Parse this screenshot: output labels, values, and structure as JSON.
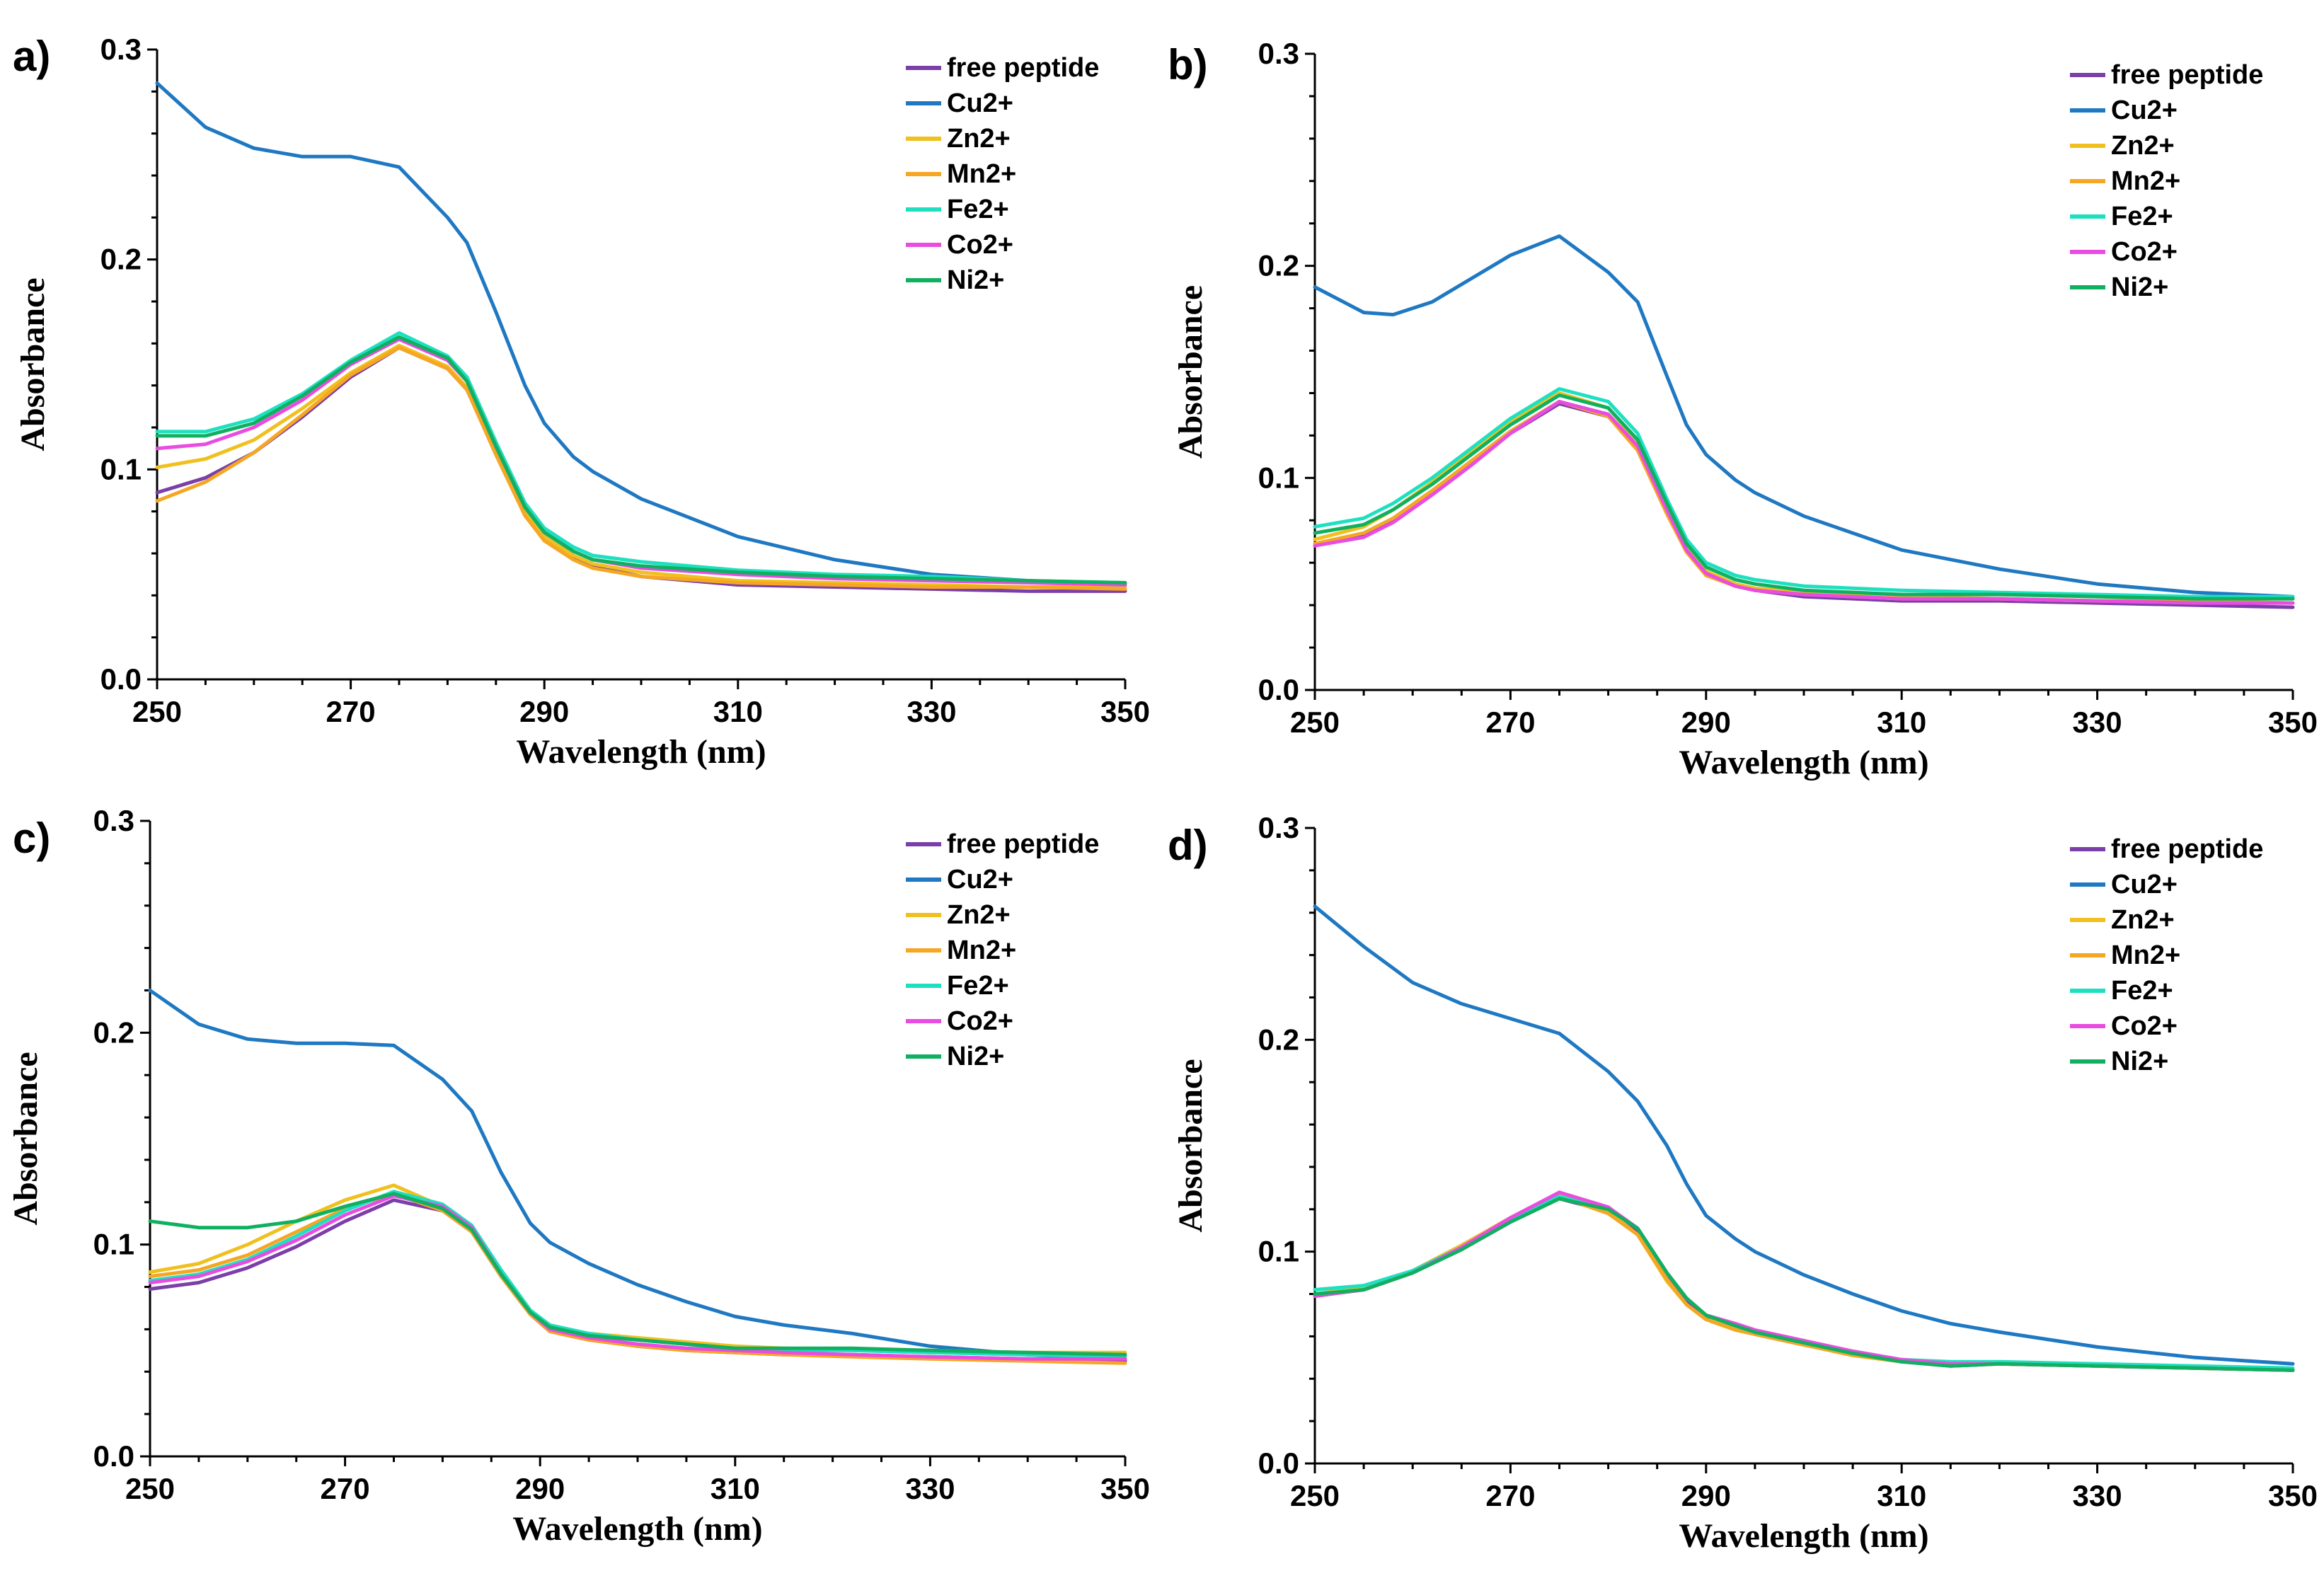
{
  "figure": {
    "panels": [
      "a)",
      "b)",
      "c)",
      "d)"
    ]
  },
  "colors": {
    "free peptide": "#7A3FA8",
    "Cu2+": "#1E78C2",
    "Zn2+": "#F0C020",
    "Mn2+": "#F5A623",
    "Fe2+": "#1EE0C0",
    "Co2+": "#E84CE0",
    "Ni2+": "#10B060"
  },
  "chart_data": [
    {
      "panel": "a)",
      "type": "line",
      "xlabel": "Wavelength (nm)",
      "ylabel": "Absorbance",
      "xlim": [
        250,
        350
      ],
      "ylim": [
        0,
        0.3
      ],
      "xticks": [
        "250",
        "270",
        "290",
        "310",
        "330",
        "350"
      ],
      "yticks": [
        "0.0",
        "0.1",
        "0.2",
        "0.3"
      ],
      "legend": [
        "free peptide",
        "Cu2+",
        "Zn2+",
        "Mn2+",
        "Fe2+",
        "Co2+",
        "Ni2+"
      ],
      "x": [
        250,
        255,
        260,
        265,
        270,
        275,
        280,
        282,
        285,
        288,
        290,
        293,
        295,
        300,
        310,
        320,
        330,
        340,
        350
      ],
      "series": [
        {
          "name": "free peptide",
          "values": [
            0.089,
            0.096,
            0.108,
            0.125,
            0.144,
            0.158,
            0.148,
            0.138,
            0.108,
            0.08,
            0.068,
            0.058,
            0.054,
            0.049,
            0.045,
            0.044,
            0.043,
            0.042,
            0.042
          ]
        },
        {
          "name": "Cu2+",
          "values": [
            0.284,
            0.263,
            0.253,
            0.249,
            0.249,
            0.244,
            0.22,
            0.208,
            0.175,
            0.14,
            0.122,
            0.106,
            0.099,
            0.086,
            0.068,
            0.057,
            0.05,
            0.047,
            0.045
          ]
        },
        {
          "name": "Zn2+",
          "values": [
            0.101,
            0.105,
            0.114,
            0.129,
            0.146,
            0.159,
            0.149,
            0.139,
            0.109,
            0.08,
            0.068,
            0.059,
            0.055,
            0.051,
            0.047,
            0.046,
            0.045,
            0.044,
            0.044
          ]
        },
        {
          "name": "Mn2+",
          "values": [
            0.085,
            0.094,
            0.108,
            0.126,
            0.145,
            0.158,
            0.148,
            0.138,
            0.107,
            0.078,
            0.066,
            0.057,
            0.053,
            0.049,
            0.046,
            0.045,
            0.044,
            0.044,
            0.043
          ]
        },
        {
          "name": "Fe2+",
          "values": [
            0.118,
            0.118,
            0.124,
            0.136,
            0.152,
            0.165,
            0.154,
            0.144,
            0.113,
            0.084,
            0.072,
            0.063,
            0.059,
            0.056,
            0.052,
            0.05,
            0.049,
            0.047,
            0.046
          ]
        },
        {
          "name": "Co2+",
          "values": [
            0.11,
            0.112,
            0.12,
            0.133,
            0.15,
            0.162,
            0.152,
            0.142,
            0.111,
            0.082,
            0.07,
            0.061,
            0.057,
            0.053,
            0.05,
            0.048,
            0.047,
            0.046,
            0.045
          ]
        },
        {
          "name": "Ni2+",
          "values": [
            0.116,
            0.116,
            0.122,
            0.135,
            0.151,
            0.163,
            0.153,
            0.142,
            0.111,
            0.082,
            0.07,
            0.061,
            0.057,
            0.054,
            0.051,
            0.049,
            0.048,
            0.047,
            0.046
          ]
        }
      ]
    },
    {
      "panel": "b)",
      "type": "line",
      "xlabel": "Wavelength (nm)",
      "ylabel": "Absorbance",
      "xlim": [
        250,
        350
      ],
      "ylim": [
        0,
        0.3
      ],
      "xticks": [
        "250",
        "270",
        "290",
        "310",
        "330",
        "350"
      ],
      "yticks": [
        "0.0",
        "0.1",
        "0.2",
        "0.3"
      ],
      "legend": [
        "free peptide",
        "Cu2+",
        "Zn2+",
        "Mn2+",
        "Fe2+",
        "Co2+",
        "Ni2+"
      ],
      "x": [
        250,
        255,
        258,
        262,
        266,
        270,
        275,
        280,
        283,
        286,
        288,
        290,
        293,
        295,
        300,
        310,
        320,
        330,
        340,
        350
      ],
      "series": [
        {
          "name": "free peptide",
          "values": [
            0.068,
            0.073,
            0.08,
            0.093,
            0.107,
            0.121,
            0.135,
            0.129,
            0.114,
            0.085,
            0.066,
            0.055,
            0.049,
            0.047,
            0.044,
            0.042,
            0.042,
            0.041,
            0.04,
            0.039
          ]
        },
        {
          "name": "Cu2+",
          "values": [
            0.19,
            0.178,
            0.177,
            0.183,
            0.194,
            0.205,
            0.214,
            0.197,
            0.183,
            0.148,
            0.125,
            0.111,
            0.099,
            0.093,
            0.082,
            0.066,
            0.057,
            0.05,
            0.046,
            0.044
          ]
        },
        {
          "name": "Zn2+",
          "values": [
            0.071,
            0.077,
            0.085,
            0.098,
            0.112,
            0.127,
            0.14,
            0.133,
            0.117,
            0.086,
            0.067,
            0.056,
            0.05,
            0.048,
            0.046,
            0.044,
            0.043,
            0.042,
            0.042,
            0.041
          ]
        },
        {
          "name": "Mn2+",
          "values": [
            0.069,
            0.074,
            0.081,
            0.094,
            0.108,
            0.122,
            0.136,
            0.129,
            0.113,
            0.083,
            0.065,
            0.054,
            0.049,
            0.047,
            0.045,
            0.043,
            0.043,
            0.042,
            0.042,
            0.041
          ]
        },
        {
          "name": "Fe2+",
          "values": [
            0.077,
            0.081,
            0.088,
            0.1,
            0.114,
            0.128,
            0.142,
            0.136,
            0.121,
            0.09,
            0.071,
            0.06,
            0.054,
            0.052,
            0.049,
            0.047,
            0.046,
            0.045,
            0.044,
            0.044
          ]
        },
        {
          "name": "Co2+",
          "values": [
            0.068,
            0.072,
            0.079,
            0.092,
            0.106,
            0.121,
            0.136,
            0.13,
            0.115,
            0.085,
            0.066,
            0.055,
            0.049,
            0.047,
            0.045,
            0.043,
            0.043,
            0.042,
            0.041,
            0.041
          ]
        },
        {
          "name": "Ni2+",
          "values": [
            0.074,
            0.078,
            0.085,
            0.097,
            0.111,
            0.125,
            0.139,
            0.133,
            0.118,
            0.088,
            0.069,
            0.058,
            0.052,
            0.05,
            0.047,
            0.045,
            0.045,
            0.044,
            0.043,
            0.043
          ]
        }
      ]
    },
    {
      "panel": "c)",
      "type": "line",
      "xlabel": "Wavelength (nm)",
      "ylabel": "Absorbance",
      "xlim": [
        250,
        350
      ],
      "ylim": [
        0,
        0.3
      ],
      "xticks": [
        "250",
        "270",
        "290",
        "310",
        "330",
        "350"
      ],
      "yticks": [
        "0.0",
        "0.1",
        "0.2",
        "0.3"
      ],
      "legend": [
        "free peptide",
        "Cu2+",
        "Zn2+",
        "Mn2+",
        "Fe2+",
        "Co2+",
        "Ni2+"
      ],
      "x": [
        250,
        255,
        260,
        265,
        270,
        275,
        280,
        283,
        286,
        289,
        291,
        295,
        300,
        305,
        310,
        315,
        322,
        330,
        340,
        350
      ],
      "series": [
        {
          "name": "free peptide",
          "values": [
            0.079,
            0.082,
            0.089,
            0.099,
            0.111,
            0.121,
            0.116,
            0.106,
            0.085,
            0.067,
            0.059,
            0.055,
            0.052,
            0.05,
            0.049,
            0.048,
            0.048,
            0.047,
            0.046,
            0.045
          ]
        },
        {
          "name": "Cu2+",
          "values": [
            0.22,
            0.204,
            0.197,
            0.195,
            0.195,
            0.194,
            0.178,
            0.163,
            0.134,
            0.11,
            0.101,
            0.091,
            0.081,
            0.073,
            0.066,
            0.062,
            0.058,
            0.052,
            0.048,
            0.046
          ]
        },
        {
          "name": "Zn2+",
          "values": [
            0.087,
            0.091,
            0.1,
            0.111,
            0.121,
            0.128,
            0.118,
            0.107,
            0.086,
            0.068,
            0.061,
            0.058,
            0.056,
            0.054,
            0.052,
            0.051,
            0.05,
            0.05,
            0.049,
            0.049
          ]
        },
        {
          "name": "Mn2+",
          "values": [
            0.085,
            0.088,
            0.095,
            0.106,
            0.117,
            0.124,
            0.116,
            0.106,
            0.085,
            0.067,
            0.059,
            0.055,
            0.052,
            0.05,
            0.049,
            0.048,
            0.047,
            0.046,
            0.045,
            0.044
          ]
        },
        {
          "name": "Fe2+",
          "values": [
            0.083,
            0.086,
            0.093,
            0.104,
            0.116,
            0.125,
            0.119,
            0.109,
            0.088,
            0.069,
            0.062,
            0.058,
            0.055,
            0.053,
            0.051,
            0.05,
            0.05,
            0.049,
            0.048,
            0.047
          ]
        },
        {
          "name": "Co2+",
          "values": [
            0.082,
            0.085,
            0.092,
            0.102,
            0.114,
            0.123,
            0.118,
            0.108,
            0.086,
            0.068,
            0.06,
            0.056,
            0.053,
            0.051,
            0.05,
            0.049,
            0.048,
            0.047,
            0.046,
            0.046
          ]
        },
        {
          "name": "Ni2+",
          "values": [
            0.111,
            0.108,
            0.108,
            0.111,
            0.118,
            0.124,
            0.117,
            0.107,
            0.086,
            0.068,
            0.061,
            0.057,
            0.055,
            0.053,
            0.051,
            0.051,
            0.051,
            0.05,
            0.049,
            0.048
          ]
        }
      ]
    },
    {
      "panel": "d)",
      "type": "line",
      "xlabel": "Wavelength (nm)",
      "ylabel": "Absorbance",
      "xlim": [
        250,
        350
      ],
      "ylim": [
        0,
        0.3
      ],
      "xticks": [
        "250",
        "270",
        "290",
        "310",
        "330",
        "350"
      ],
      "yticks": [
        "0.0",
        "0.1",
        "0.2",
        "0.3"
      ],
      "legend": [
        "free peptide",
        "Cu2+",
        "Zn2+",
        "Mn2+",
        "Fe2+",
        "Co2+",
        "Ni2+"
      ],
      "x": [
        250,
        255,
        260,
        265,
        270,
        275,
        280,
        283,
        286,
        288,
        290,
        293,
        295,
        300,
        305,
        310,
        315,
        320,
        330,
        340,
        350
      ],
      "series": [
        {
          "name": "free peptide",
          "values": [
            0.079,
            0.082,
            0.09,
            0.101,
            0.114,
            0.125,
            0.119,
            0.11,
            0.089,
            0.077,
            0.069,
            0.064,
            0.061,
            0.056,
            0.052,
            0.048,
            0.046,
            0.047,
            0.046,
            0.045,
            0.044
          ]
        },
        {
          "name": "Cu2+",
          "values": [
            0.263,
            0.244,
            0.227,
            0.217,
            0.21,
            0.203,
            0.185,
            0.171,
            0.15,
            0.132,
            0.117,
            0.106,
            0.1,
            0.089,
            0.08,
            0.072,
            0.066,
            0.062,
            0.055,
            0.05,
            0.047
          ]
        },
        {
          "name": "Zn2+",
          "values": [
            0.08,
            0.083,
            0.091,
            0.103,
            0.116,
            0.127,
            0.119,
            0.108,
            0.086,
            0.075,
            0.068,
            0.064,
            0.061,
            0.056,
            0.052,
            0.048,
            0.047,
            0.047,
            0.046,
            0.045,
            0.044
          ]
        },
        {
          "name": "Mn2+",
          "values": [
            0.079,
            0.082,
            0.09,
            0.102,
            0.115,
            0.126,
            0.118,
            0.108,
            0.087,
            0.075,
            0.068,
            0.063,
            0.061,
            0.056,
            0.051,
            0.048,
            0.047,
            0.047,
            0.046,
            0.045,
            0.044
          ]
        },
        {
          "name": "Fe2+",
          "values": [
            0.082,
            0.084,
            0.091,
            0.102,
            0.115,
            0.126,
            0.12,
            0.111,
            0.09,
            0.078,
            0.07,
            0.065,
            0.062,
            0.057,
            0.052,
            0.049,
            0.048,
            0.048,
            0.047,
            0.046,
            0.045
          ]
        },
        {
          "name": "Co2+",
          "values": [
            0.079,
            0.082,
            0.09,
            0.102,
            0.116,
            0.128,
            0.121,
            0.111,
            0.09,
            0.078,
            0.07,
            0.066,
            0.063,
            0.058,
            0.053,
            0.049,
            0.047,
            0.047,
            0.046,
            0.045,
            0.044
          ]
        },
        {
          "name": "Ni2+",
          "values": [
            0.08,
            0.082,
            0.09,
            0.101,
            0.114,
            0.125,
            0.12,
            0.111,
            0.09,
            0.078,
            0.07,
            0.065,
            0.062,
            0.057,
            0.052,
            0.048,
            0.046,
            0.047,
            0.046,
            0.045,
            0.044
          ]
        }
      ]
    }
  ]
}
